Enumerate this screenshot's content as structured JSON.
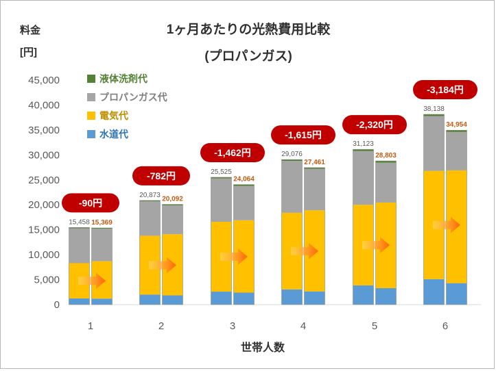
{
  "chart_data": {
    "type": "bar",
    "stacked": true,
    "title": "1ヶ月あたりの光熱費用比較",
    "subtitle": "(プロパンガス)",
    "ylabel_line1": "料金",
    "ylabel_line2": "[円]",
    "xlabel": "世帯人数",
    "ylim": [
      0,
      45000
    ],
    "yticks": [
      "0",
      "5,000",
      "10,000",
      "15,000",
      "20,000",
      "25,000",
      "30,000",
      "35,000",
      "40,000",
      "45,000"
    ],
    "categories": [
      "1",
      "2",
      "3",
      "4",
      "5",
      "6"
    ],
    "legend_position": "top-left",
    "grid": false,
    "series_order": [
      "水道代",
      "電気代",
      "プロパンガス代",
      "液体洗剤代"
    ],
    "legend": [
      {
        "name": "液体洗剤代",
        "color": "#548235"
      },
      {
        "name": "プロパンガス代",
        "color": "#a5a5a5"
      },
      {
        "name": "電気代",
        "color": "#ffc000"
      },
      {
        "name": "水道代",
        "color": "#5b9bd5"
      }
    ],
    "bars": [
      {
        "category": "1",
        "pair": [
          {
            "segments": [
              1250,
              7050,
              7000,
              158
            ],
            "total_label": "15,458"
          },
          {
            "segments": [
              1200,
              7500,
              6500,
              169
            ],
            "total_label": "15,369"
          }
        ],
        "diff_label": "-90円"
      },
      {
        "category": "2",
        "pair": [
          {
            "segments": [
              2000,
              11800,
              6900,
              173
            ],
            "total_label": "20,873"
          },
          {
            "segments": [
              1850,
              12250,
              5800,
              192
            ],
            "total_label": "20,092"
          }
        ],
        "diff_label": "-782円"
      },
      {
        "category": "3",
        "pair": [
          {
            "segments": [
              2600,
              14000,
              8700,
              225
            ],
            "total_label": "25,525"
          },
          {
            "segments": [
              2400,
              14500,
              6900,
              264
            ],
            "total_label": "24,064"
          }
        ],
        "diff_label": "-1,462円"
      },
      {
        "category": "4",
        "pair": [
          {
            "segments": [
              3050,
              15350,
              10400,
              276
            ],
            "total_label": "29,076"
          },
          {
            "segments": [
              2650,
              16250,
              8300,
              261
            ],
            "total_label": "27,461"
          }
        ],
        "diff_label": "-1,615円"
      },
      {
        "category": "5",
        "pair": [
          {
            "segments": [
              3850,
              16150,
              10800,
              323
            ],
            "total_label": "31,123"
          },
          {
            "segments": [
              3300,
              17150,
              8000,
              353
            ],
            "total_label": "28,803"
          }
        ],
        "diff_label": "-2,320円"
      },
      {
        "category": "6",
        "pair": [
          {
            "segments": [
              5100,
              21700,
              11000,
              338
            ],
            "total_label": "38,138"
          },
          {
            "segments": [
              4300,
              22600,
              7700,
              354
            ],
            "total_label": "34,954"
          }
        ],
        "diff_label": "-3,184円"
      }
    ]
  }
}
